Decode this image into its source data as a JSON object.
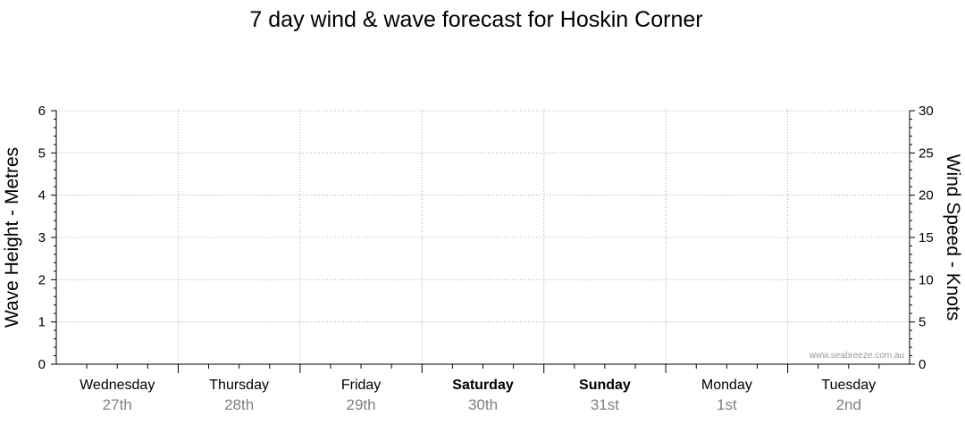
{
  "chart_data": {
    "type": "line",
    "title": "7 day wind & wave forecast for Hoskin Corner",
    "y_left": {
      "label": "Wave Height - Metres",
      "range": [
        0,
        6
      ],
      "ticks": [
        0,
        1,
        2,
        3,
        4,
        5,
        6
      ]
    },
    "y_right": {
      "label": "Wind Speed - Knots",
      "range": [
        0,
        30
      ],
      "ticks": [
        0,
        5,
        10,
        15,
        20,
        25,
        30
      ]
    },
    "days": [
      {
        "name": "Wednesday",
        "date": "27th",
        "bold": false
      },
      {
        "name": "Thursday",
        "date": "28th",
        "bold": false
      },
      {
        "name": "Friday",
        "date": "29th",
        "bold": false
      },
      {
        "name": "Saturday",
        "date": "30th",
        "bold": true
      },
      {
        "name": "Sunday",
        "date": "31st",
        "bold": true
      },
      {
        "name": "Monday",
        "date": "1st",
        "bold": false
      },
      {
        "name": "Tuesday",
        "date": "2nd",
        "bold": false
      }
    ],
    "series": [],
    "grid": true,
    "watermark": "www.seabreeze.com.au"
  }
}
